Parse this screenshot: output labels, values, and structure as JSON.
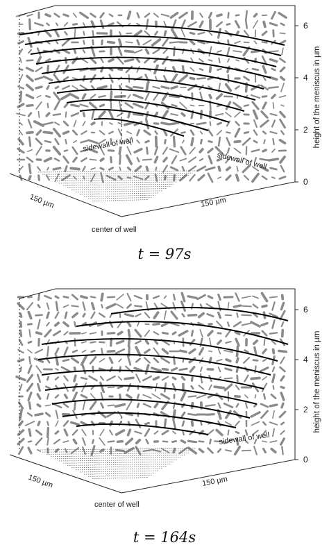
{
  "panels": [
    {
      "caption": "t = 97s",
      "axis_label_z": "height of the meniscus in µm",
      "z_ticks": [
        "0",
        "2",
        "4",
        "6"
      ],
      "axis_left_label": "150 µm",
      "axis_right_label": "150 µm",
      "corner_label": "center of well",
      "annotations": [
        "sidewall of well",
        "sidewall of well"
      ]
    },
    {
      "caption": "t = 164s",
      "axis_label_z": "height of the meniscus in µm",
      "z_ticks": [
        "0",
        "2",
        "4",
        "6"
      ],
      "axis_left_label": "150 µm",
      "axis_right_label": "150 µm",
      "corner_label": "center of well",
      "annotations": [
        "sidewall of well"
      ]
    }
  ],
  "colors": {
    "ink": "#111111",
    "vectors": "#8a8a8a",
    "contours": "#000000"
  }
}
